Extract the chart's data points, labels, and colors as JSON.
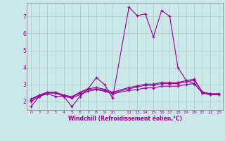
{
  "bg_color": "#cce8e8",
  "grid_color": "#aacccc",
  "line_color": "#990099",
  "xlabel": "Windchill (Refroidissement éolien,°C)",
  "xlim": [
    -0.5,
    23.5
  ],
  "ylim": [
    1.5,
    7.8
  ],
  "yticks": [
    2,
    3,
    4,
    5,
    6,
    7
  ],
  "xtick_positions": [
    0,
    1,
    2,
    3,
    4,
    5,
    6,
    7,
    8,
    9,
    10,
    12,
    13,
    14,
    15,
    16,
    17,
    18,
    19,
    20,
    21,
    22,
    23
  ],
  "xtick_labels": [
    "0",
    "1",
    "2",
    "3",
    "4",
    "5",
    "6",
    "7",
    "8",
    "9",
    "10",
    "12",
    "13",
    "14",
    "15",
    "16",
    "17",
    "18",
    "19",
    "20",
    "21",
    "22",
    "23"
  ],
  "line1_x": [
    0,
    1,
    2,
    3,
    4,
    5,
    6,
    7,
    8,
    9,
    10,
    12,
    13,
    14,
    15,
    16,
    17,
    18,
    19,
    20,
    21,
    22,
    23
  ],
  "line1_y": [
    1.7,
    2.3,
    2.45,
    2.3,
    2.3,
    1.7,
    2.3,
    2.75,
    3.4,
    3.0,
    2.2,
    7.55,
    7.05,
    7.15,
    5.8,
    7.35,
    7.0,
    4.0,
    3.25,
    3.05,
    2.5,
    2.4,
    2.4
  ],
  "line2_x": [
    0,
    1,
    2,
    3,
    4,
    5,
    6,
    7,
    8,
    9,
    10,
    12,
    13,
    14,
    15,
    16,
    17,
    18,
    19,
    20,
    21,
    22,
    23
  ],
  "line2_y": [
    2.0,
    2.3,
    2.5,
    2.5,
    2.3,
    2.2,
    2.4,
    2.6,
    2.7,
    2.6,
    2.45,
    2.65,
    2.7,
    2.8,
    2.8,
    2.9,
    2.9,
    2.9,
    3.0,
    3.05,
    2.5,
    2.4,
    2.4
  ],
  "line3_x": [
    0,
    1,
    2,
    3,
    4,
    5,
    6,
    7,
    8,
    9,
    10,
    12,
    13,
    14,
    15,
    16,
    17,
    18,
    19,
    20,
    21,
    22,
    23
  ],
  "line3_y": [
    2.1,
    2.35,
    2.5,
    2.5,
    2.35,
    2.25,
    2.5,
    2.7,
    2.75,
    2.65,
    2.5,
    2.75,
    2.85,
    2.95,
    2.95,
    3.05,
    3.05,
    3.05,
    3.15,
    3.25,
    2.55,
    2.45,
    2.45
  ],
  "line4_x": [
    0,
    1,
    2,
    3,
    4,
    5,
    6,
    7,
    8,
    9,
    10,
    12,
    13,
    14,
    15,
    16,
    17,
    18,
    19,
    20,
    21,
    22,
    23
  ],
  "line4_y": [
    2.15,
    2.38,
    2.55,
    2.55,
    2.38,
    2.28,
    2.55,
    2.75,
    2.82,
    2.72,
    2.55,
    2.82,
    2.92,
    3.02,
    3.02,
    3.12,
    3.12,
    3.12,
    3.22,
    3.32,
    2.55,
    2.45,
    2.45
  ]
}
